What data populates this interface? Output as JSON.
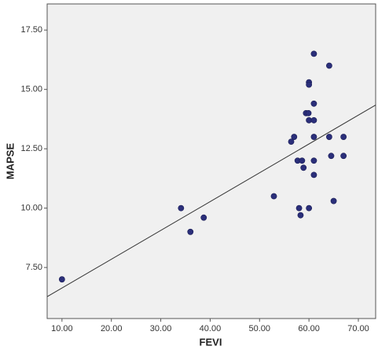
{
  "chart_data": {
    "type": "scatter",
    "x_label": "FEVI",
    "y_label": "MAPSE",
    "x": [
      10,
      34.1,
      36,
      38.7,
      52.9,
      56.4,
      57,
      57.7,
      58.6,
      58,
      58.3,
      58.9,
      59.4,
      59.9,
      60,
      60,
      60,
      60,
      61,
      61,
      61,
      61,
      61,
      61,
      64.1,
      64.1,
      64.5,
      65,
      67,
      67
    ],
    "values": [
      7.0,
      10.0,
      9.0,
      9.6,
      10.5,
      12.8,
      13.0,
      12.0,
      12.0,
      10.0,
      9.7,
      11.7,
      14.0,
      14.0,
      15.3,
      15.2,
      13.7,
      10.0,
      16.5,
      14.4,
      13.7,
      13.0,
      12.0,
      11.4,
      16.0,
      13.0,
      12.2,
      10.3,
      13.0,
      12.2
    ],
    "color": "#2b2f7a",
    "fit_line": {
      "x": [
        7,
        73.5
      ],
      "y": [
        6.27,
        14.34
      ]
    },
    "xlim": [
      7,
      73.5
    ],
    "ylim": [
      5.35,
      18.6
    ],
    "xticks": [
      {
        "value": 10,
        "label": "10.00"
      },
      {
        "value": 20,
        "label": "20.00"
      },
      {
        "value": 30,
        "label": "30.00"
      },
      {
        "value": 40,
        "label": "40.00"
      },
      {
        "value": 50,
        "label": "50.00"
      },
      {
        "value": 60,
        "label": "60.00"
      },
      {
        "value": 70,
        "label": "70.00"
      }
    ],
    "yticks": [
      {
        "value": 7.5,
        "label": "7.50"
      },
      {
        "value": 10,
        "label": "10.00"
      },
      {
        "value": 12.5,
        "label": "12.50"
      },
      {
        "value": 15,
        "label": "15.00"
      },
      {
        "value": 17.5,
        "label": "17.50"
      }
    ]
  }
}
